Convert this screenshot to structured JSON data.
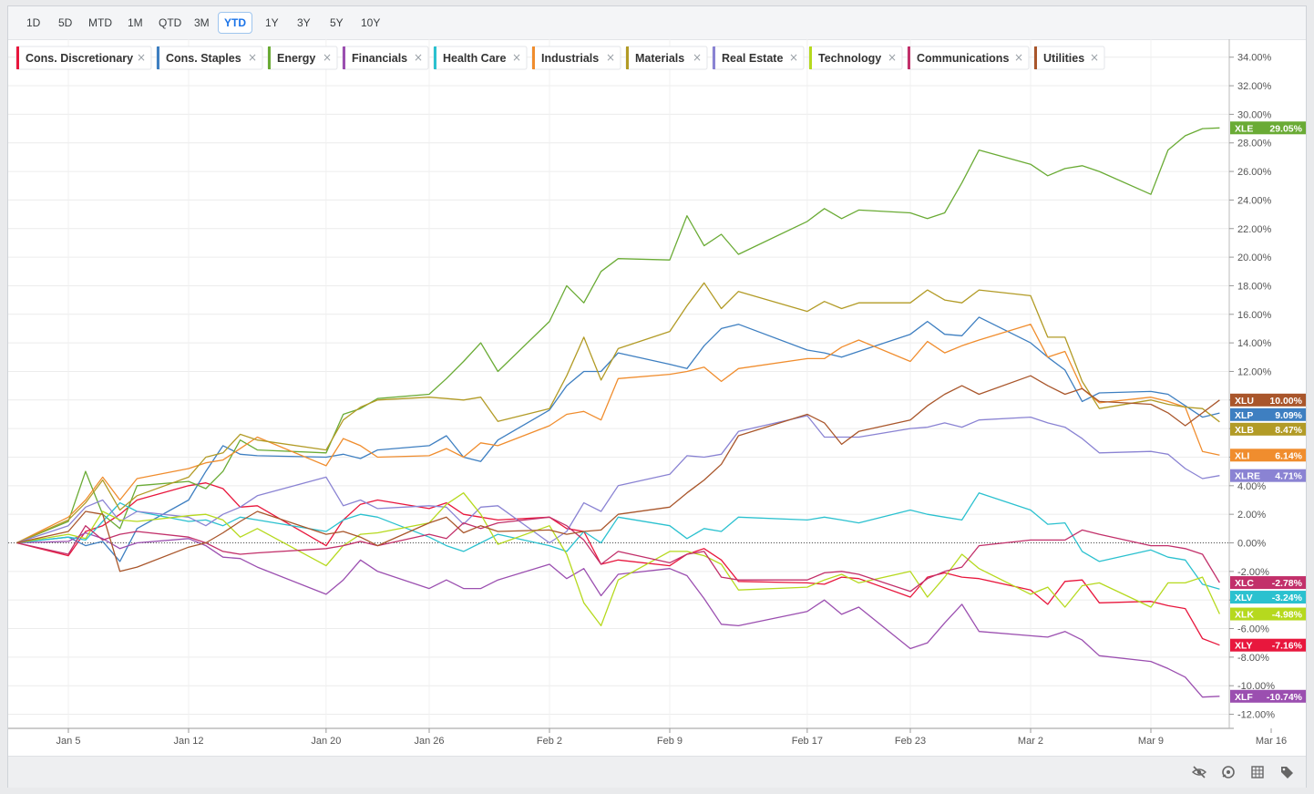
{
  "range_buttons": [
    {
      "label": "1D",
      "active": false
    },
    {
      "label": "5D",
      "active": false
    },
    {
      "label": "MTD",
      "active": false
    },
    {
      "label": "1M",
      "active": false
    },
    {
      "label": "QTD",
      "active": false
    },
    {
      "label": "3M",
      "active": false
    },
    {
      "label": "YTD",
      "active": true
    },
    {
      "label": "1Y",
      "active": false
    },
    {
      "label": "3Y",
      "active": false
    },
    {
      "label": "5Y",
      "active": false
    },
    {
      "label": "10Y",
      "active": false
    }
  ],
  "toolbar_icons": [
    "hide-icon",
    "reset-zoom-icon",
    "table-icon",
    "tag-icon"
  ],
  "chart_data": {
    "type": "line",
    "x": [
      "Jan 2",
      "Jan 5",
      "Jan 6",
      "Jan 7",
      "Jan 8",
      "Jan 9",
      "Jan 12",
      "Jan 13",
      "Jan 14",
      "Jan 15",
      "Jan 16",
      "Jan 20",
      "Jan 21",
      "Jan 22",
      "Jan 23",
      "Jan 26",
      "Jan 27",
      "Jan 28",
      "Jan 29",
      "Jan 30",
      "Feb 2",
      "Feb 3",
      "Feb 4",
      "Feb 5",
      "Feb 6",
      "Feb 9",
      "Feb 10",
      "Feb 11",
      "Feb 12",
      "Feb 13",
      "Feb 17",
      "Feb 18",
      "Feb 19",
      "Feb 20",
      "Feb 23",
      "Feb 24",
      "Feb 25",
      "Feb 26",
      "Feb 27",
      "Mar 2",
      "Mar 3",
      "Mar 4",
      "Mar 5",
      "Mar 6",
      "Mar 9",
      "Mar 10",
      "Mar 11",
      "Mar 12",
      "Mar 13"
    ],
    "x_ticks": [
      "Jan 5",
      "Jan 12",
      "Jan 20",
      "Jan 26",
      "Feb 2",
      "Feb 9",
      "Feb 17",
      "Feb 23",
      "Mar 2",
      "Mar 9",
      "Mar 16"
    ],
    "ylim": [
      -12.8,
      34.8
    ],
    "y_ticks": [
      34,
      32,
      30,
      28,
      26,
      24,
      22,
      20,
      18,
      16,
      14,
      12,
      10,
      8,
      6,
      4,
      2,
      0,
      -2,
      -4,
      -6,
      -8,
      -10,
      -12
    ],
    "y_tick_labels": [
      "34.00%",
      "32.00%",
      "30.00%",
      "28.00%",
      "26.00%",
      "24.00%",
      "22.00%",
      "20.00%",
      "18.00%",
      "16.00%",
      "14.00%",
      "12.00%",
      "",
      "",
      "",
      "4.00%",
      "2.00%",
      "0.00%",
      "-2.00%",
      "-4.00%",
      "-6.00%",
      "-8.00%",
      "-10.00%",
      "-12.00%"
    ],
    "grid": true,
    "legend_position": "top-left",
    "series": [
      {
        "name": "Cons. Discretionary",
        "ticker": "XLY",
        "color": "#e8173d",
        "last_label": "-7.16%",
        "values": [
          0,
          -0.9,
          0.8,
          1.2,
          2.0,
          3.0,
          4.0,
          4.2,
          3.8,
          2.5,
          2.6,
          -0.2,
          1.6,
          2.7,
          3.0,
          2.4,
          2.8,
          2.0,
          1.8,
          1.6,
          1.8,
          1.0,
          0.8,
          -1.5,
          -1.2,
          -1.6,
          -0.8,
          -0.4,
          -1.2,
          -2.7,
          -2.8,
          -2.9,
          -2.4,
          -2.5,
          -3.8,
          -2.4,
          -2.1,
          -2.4,
          -2.5,
          -3.3,
          -4.3,
          -2.7,
          -2.6,
          -4.2,
          -4.1,
          -4.4,
          -4.6,
          -6.7,
          -7.16
        ]
      },
      {
        "name": "Cons. Staples",
        "ticker": "XLP",
        "color": "#3e7fc1",
        "last_label": "9.09%",
        "values": [
          0,
          0.4,
          -0.2,
          0.1,
          -1.3,
          1.0,
          3.0,
          5.0,
          6.8,
          6.2,
          6.1,
          6.0,
          6.2,
          5.9,
          6.5,
          6.8,
          7.5,
          6.0,
          5.7,
          7.2,
          9.3,
          11.0,
          12.0,
          12.0,
          13.3,
          12.5,
          12.2,
          13.8,
          15.0,
          15.3,
          13.5,
          13.3,
          13.0,
          13.4,
          14.6,
          15.5,
          14.6,
          14.5,
          15.8,
          14.0,
          13.0,
          12.1,
          9.9,
          10.5,
          10.6,
          10.4,
          9.6,
          8.8,
          9.09
        ]
      },
      {
        "name": "Energy",
        "ticker": "XLE",
        "color": "#6aab35",
        "last_label": "29.05%",
        "values": [
          0,
          1.5,
          5.0,
          2.0,
          1.0,
          4.0,
          4.3,
          3.8,
          5.0,
          7.2,
          6.5,
          6.3,
          9.0,
          9.4,
          10.1,
          10.4,
          11.5,
          12.7,
          14.0,
          12.0,
          15.5,
          18.0,
          16.8,
          19.0,
          19.9,
          19.8,
          22.9,
          20.8,
          21.6,
          20.2,
          22.5,
          23.4,
          22.7,
          23.3,
          23.1,
          22.7,
          23.1,
          25.2,
          27.5,
          26.5,
          25.7,
          26.2,
          26.4,
          26.0,
          24.4,
          27.5,
          28.5,
          29.0,
          29.05
        ]
      },
      {
        "name": "Financials",
        "ticker": "XLF",
        "color": "#9b4fb0",
        "last_label": "-10.74%",
        "values": [
          0,
          0.1,
          0.7,
          0.3,
          -0.4,
          0.0,
          0.3,
          -0.2,
          -1.0,
          -1.1,
          -1.7,
          -3.6,
          -2.6,
          -1.2,
          -2.0,
          -3.2,
          -2.6,
          -3.2,
          -3.2,
          -2.6,
          -1.5,
          -2.5,
          -1.8,
          -3.7,
          -2.2,
          -1.8,
          -2.3,
          -3.9,
          -5.7,
          -5.8,
          -4.8,
          -4.0,
          -5.0,
          -4.5,
          -7.4,
          -7.0,
          -5.6,
          -4.3,
          -6.2,
          -6.5,
          -6.6,
          -6.2,
          -6.8,
          -7.9,
          -8.3,
          -8.8,
          -9.4,
          -10.8,
          -10.74
        ]
      },
      {
        "name": "Health Care",
        "ticker": "XLV",
        "color": "#2bc1cf",
        "last_label": "-3.24%",
        "values": [
          0,
          0.4,
          0.2,
          1.5,
          2.8,
          2.2,
          1.5,
          1.6,
          1.2,
          1.8,
          1.6,
          0.8,
          1.6,
          2.0,
          1.8,
          0.4,
          -0.2,
          -0.6,
          0.0,
          0.6,
          -0.2,
          -0.6,
          0.8,
          0.0,
          1.8,
          1.2,
          0.3,
          1.0,
          0.8,
          1.8,
          1.6,
          1.8,
          1.6,
          1.4,
          2.3,
          2.0,
          1.8,
          1.6,
          3.5,
          2.3,
          1.3,
          1.4,
          -0.6,
          -1.3,
          -0.5,
          -1.0,
          -1.2,
          -2.9,
          -3.24
        ]
      },
      {
        "name": "Industrials",
        "ticker": "XLI",
        "color": "#f08d2e",
        "last_label": "6.14%",
        "values": [
          0,
          1.8,
          3.0,
          4.6,
          3.0,
          4.5,
          5.2,
          5.6,
          5.8,
          6.6,
          7.4,
          5.4,
          7.3,
          6.8,
          6.0,
          6.1,
          6.6,
          6.0,
          7.0,
          6.8,
          8.2,
          9.0,
          9.2,
          8.6,
          11.5,
          11.8,
          12.0,
          12.3,
          11.3,
          12.2,
          12.9,
          12.9,
          13.7,
          14.2,
          12.7,
          14.1,
          13.3,
          13.8,
          14.2,
          15.3,
          13.0,
          13.4,
          10.8,
          9.8,
          10.2,
          9.9,
          9.5,
          6.4,
          6.14
        ]
      },
      {
        "name": "Materials",
        "ticker": "XLB",
        "color": "#b29b26",
        "last_label": "8.47%",
        "values": [
          0,
          1.6,
          2.8,
          4.4,
          2.3,
          3.3,
          4.6,
          6.0,
          6.3,
          7.6,
          7.2,
          6.5,
          8.6,
          9.5,
          10.0,
          10.2,
          10.1,
          10.0,
          10.2,
          8.5,
          9.4,
          11.7,
          14.4,
          11.4,
          13.6,
          14.8,
          16.6,
          18.2,
          16.4,
          17.6,
          16.2,
          16.9,
          16.4,
          16.8,
          16.8,
          17.7,
          17.0,
          16.8,
          17.7,
          17.3,
          14.4,
          14.4,
          11.3,
          9.4,
          10.0,
          9.7,
          9.5,
          9.4,
          8.47
        ]
      },
      {
        "name": "Real Estate",
        "ticker": "XLRE",
        "color": "#8a83d3",
        "last_label": "4.71%",
        "values": [
          0,
          1.2,
          2.5,
          3.0,
          1.5,
          2.2,
          1.8,
          1.2,
          2.0,
          2.5,
          3.3,
          4.6,
          2.6,
          3.0,
          2.4,
          2.6,
          2.5,
          1.3,
          2.5,
          2.6,
          0.0,
          0.8,
          2.8,
          2.2,
          4.0,
          4.8,
          6.1,
          6.0,
          6.2,
          7.8,
          8.9,
          7.4,
          7.4,
          7.4,
          8.0,
          8.1,
          8.4,
          8.1,
          8.6,
          8.8,
          8.4,
          8.1,
          7.3,
          6.3,
          6.4,
          6.2,
          5.2,
          4.5,
          4.71
        ]
      },
      {
        "name": "Technology",
        "ticker": "XLK",
        "color": "#b6d91e",
        "last_label": "-4.98%",
        "values": [
          0,
          0.6,
          0.3,
          2.2,
          1.6,
          1.5,
          1.9,
          2.0,
          1.6,
          0.4,
          1.0,
          -1.6,
          -0.2,
          0.6,
          0.7,
          1.4,
          2.7,
          3.5,
          2.0,
          -0.1,
          1.2,
          -0.8,
          -4.2,
          -5.8,
          -2.6,
          -0.6,
          -0.6,
          -0.9,
          -1.5,
          -3.3,
          -3.1,
          -2.6,
          -2.2,
          -2.8,
          -2.0,
          -3.8,
          -2.4,
          -0.8,
          -1.8,
          -3.6,
          -3.1,
          -4.5,
          -3.0,
          -2.8,
          -4.5,
          -2.8,
          -2.8,
          -2.4,
          -4.98
        ]
      },
      {
        "name": "Communications",
        "ticker": "XLC",
        "color": "#c2306a",
        "last_label": "-2.78%",
        "values": [
          0,
          -0.8,
          1.2,
          0.2,
          0.6,
          0.8,
          0.4,
          0.0,
          -0.6,
          -0.8,
          -0.7,
          -0.4,
          -0.2,
          0.1,
          -0.2,
          0.6,
          0.3,
          1.4,
          1.0,
          1.4,
          1.8,
          1.2,
          0.2,
          -1.5,
          -0.6,
          -1.4,
          -0.8,
          -0.6,
          -2.4,
          -2.6,
          -2.6,
          -2.1,
          -2.0,
          -2.2,
          -3.4,
          -2.5,
          -2.0,
          -1.7,
          -0.2,
          0.2,
          0.2,
          0.2,
          0.9,
          0.6,
          -0.2,
          -0.2,
          -0.4,
          -0.8,
          -2.78
        ]
      },
      {
        "name": "Utilities",
        "ticker": "XLU",
        "color": "#a9562b",
        "last_label": "10.00%",
        "values": [
          0,
          0.8,
          2.2,
          2.0,
          -2.0,
          -1.7,
          -0.3,
          0.0,
          0.7,
          1.5,
          2.2,
          0.6,
          0.8,
          0.4,
          -0.2,
          1.4,
          1.8,
          0.7,
          1.2,
          0.8,
          0.9,
          0.6,
          0.8,
          0.9,
          2.0,
          2.5,
          3.5,
          4.4,
          5.5,
          7.5,
          9.0,
          8.4,
          6.9,
          7.8,
          8.6,
          9.6,
          10.4,
          11.0,
          10.4,
          11.7,
          11.0,
          10.4,
          10.8,
          9.9,
          9.7,
          9.1,
          8.2,
          9.1,
          10.0
        ]
      }
    ]
  }
}
